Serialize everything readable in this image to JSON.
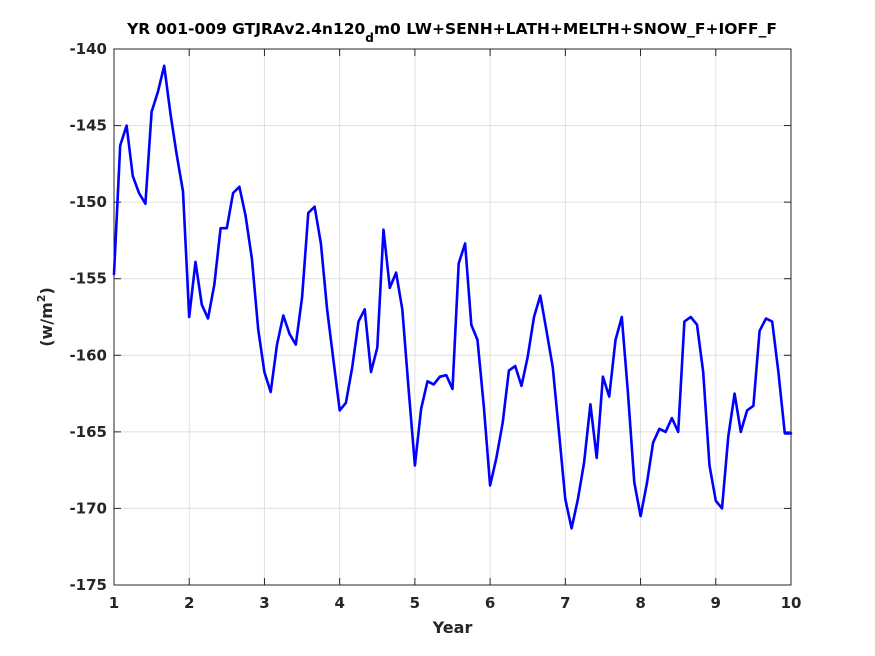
{
  "chart_data": {
    "type": "line",
    "title": {
      "prefix": "YR 001-009 GTJRAv2.4n120",
      "subscript": "d",
      "suffix": "m0 LW+SENH+LATH+MELTH+SNOW_F+IOFF_F"
    },
    "xlabel": "Year",
    "ylabel": {
      "prefix": "(w/m",
      "superscript": "2",
      "suffix": ")"
    },
    "xlim": [
      1,
      10
    ],
    "ylim": [
      -175,
      -140
    ],
    "xticks": [
      1,
      2,
      3,
      4,
      5,
      6,
      7,
      8,
      9,
      10
    ],
    "xtick_labels": [
      "1",
      "2",
      "3",
      "4",
      "5",
      "6",
      "7",
      "8",
      "9",
      "10"
    ],
    "yticks": [
      -175,
      -170,
      -165,
      -160,
      -155,
      -150,
      -145,
      -140
    ],
    "ytick_labels": [
      "-175",
      "-170",
      "-165",
      "-160",
      "-155",
      "-150",
      "-145",
      "-140"
    ],
    "grid": true,
    "line_color": "#0000ff",
    "series": [
      {
        "x": [
          1.0,
          1.083,
          1.167,
          1.25,
          1.333,
          1.417,
          1.5,
          1.583,
          1.667,
          1.75,
          1.833,
          1.917,
          2.0,
          2.083,
          2.167,
          2.25,
          2.333,
          2.417,
          2.5,
          2.583,
          2.667,
          2.75,
          2.833,
          2.917,
          3.0,
          3.083,
          3.167,
          3.25,
          3.333,
          3.417,
          3.5,
          3.583,
          3.667,
          3.75,
          3.833,
          3.917,
          4.0,
          4.083,
          4.167,
          4.25,
          4.333,
          4.417,
          4.5,
          4.583,
          4.667,
          4.75,
          4.833,
          4.917,
          5.0,
          5.083,
          5.167,
          5.25,
          5.333,
          5.417,
          5.5,
          5.583,
          5.667,
          5.75,
          5.833,
          5.917,
          6.0,
          6.083,
          6.167,
          6.25,
          6.333,
          6.417,
          6.5,
          6.583,
          6.667,
          6.75,
          6.833,
          6.917,
          7.0,
          7.083,
          7.167,
          7.25,
          7.333,
          7.417,
          7.5,
          7.583,
          7.667,
          7.75,
          7.833,
          7.917,
          8.0,
          8.083,
          8.167,
          8.25,
          8.333,
          8.417,
          8.5,
          8.583,
          8.667,
          8.75,
          8.833,
          8.917,
          9.0,
          9.083,
          9.167,
          9.25,
          9.333,
          9.417,
          9.5,
          9.583,
          9.667,
          9.75,
          9.833,
          9.917,
          10.0
        ],
        "y": [
          -154.7,
          -146.3,
          -145.0,
          -148.3,
          -149.4,
          -150.1,
          -144.1,
          -142.8,
          -141.1,
          -144.2,
          -146.9,
          -149.3,
          -157.5,
          -153.9,
          -156.7,
          -157.6,
          -155.4,
          -151.7,
          -151.7,
          -149.4,
          -149.0,
          -150.9,
          -153.7,
          -158.3,
          -161.1,
          -162.4,
          -159.3,
          -157.4,
          -158.6,
          -159.3,
          -156.2,
          -150.7,
          -150.3,
          -152.7,
          -157.0,
          -160.3,
          -163.6,
          -163.1,
          -160.8,
          -157.8,
          -157.0,
          -161.1,
          -159.5,
          -151.8,
          -155.6,
          -154.6,
          -157.0,
          -162.2,
          -167.2,
          -163.5,
          -161.7,
          -161.9,
          -161.4,
          -161.3,
          -162.2,
          -154.0,
          -152.7,
          -158.0,
          -159.0,
          -163.4,
          -168.5,
          -166.7,
          -164.4,
          -161.0,
          -160.7,
          -162.0,
          -160.1,
          -157.5,
          -156.1,
          -158.4,
          -160.8,
          -165.1,
          -169.4,
          -171.3,
          -169.4,
          -167.0,
          -163.2,
          -166.7,
          -161.4,
          -162.7,
          -159.0,
          -157.5,
          -162.5,
          -168.3,
          -170.5,
          -168.4,
          -165.7,
          -164.8,
          -165.0,
          -164.1,
          -165.0,
          -157.8,
          -157.5,
          -158.0,
          -161.1,
          -167.2,
          -169.5,
          -170.0,
          -165.3,
          -162.5,
          -165.0,
          -163.6,
          -163.3,
          -158.4,
          -157.6,
          -157.8,
          -161.1,
          -165.1,
          -165.1
        ]
      }
    ]
  }
}
